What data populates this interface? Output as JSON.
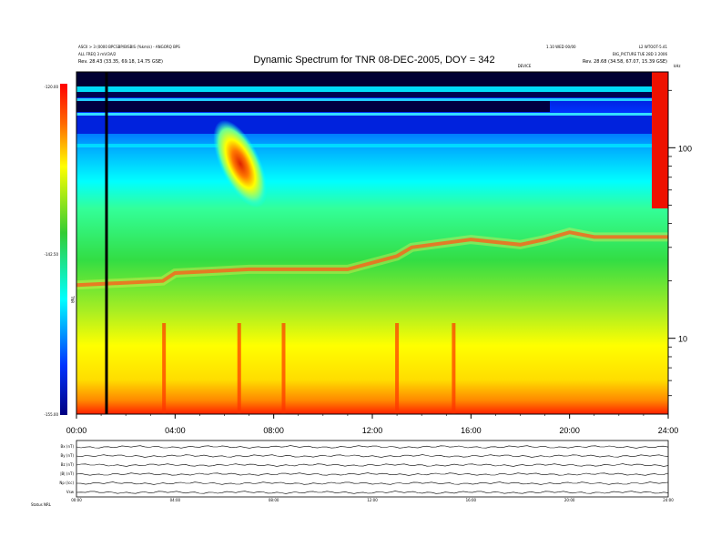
{
  "header": {
    "title": "Dynamic Spectrum for TNR 08-DEC-2005, DOY = 342",
    "left_line1": "ASCII > 3 (0000 BPCSBP/BISBIS (%km/s) - ANGORQ BPS",
    "left_line2": "ALL FREQ 3 mV/3A/2",
    "left_line3": "Rev.   28.43 (33.35, 69.18, 14.75 GSE)",
    "right_line1": "1.10 WED 00/00",
    "right_line2": "L2 WTOOT-5.41",
    "right_line3": "BIG_PICTURE TUE 28D 3 2006",
    "right_line4": "Rev.   28.68 (34.58, 67.07, 15.39 GSE)",
    "sub_right": "DEVICE",
    "khz_label": "kHz"
  },
  "colorbar": {
    "labels": [
      "-120.00",
      "-142.50",
      "-155.00"
    ],
    "side_label": "TNR"
  },
  "bottom_panels": {
    "labels": [
      "Bx (nT)",
      "By (nT)",
      "Bz (nT)",
      "|B| (nT)",
      "Np (/cc)",
      "Vsw"
    ],
    "footer_left": "Status    NRL",
    "mini_ticks": [
      "00:00",
      "04:00",
      "08:00",
      "12:00",
      "16:00",
      "20:00",
      "24:00"
    ]
  },
  "chart_data": {
    "type": "heatmap",
    "title": "Dynamic Spectrum for TNR 08-DEC-2005, DOY = 342",
    "xlabel": "",
    "ylabel": "kHz",
    "x_ticks": [
      "00:00",
      "04:00",
      "08:00",
      "12:00",
      "16:00",
      "20:00",
      "24:00"
    ],
    "xlim": [
      0,
      24
    ],
    "ylim": [
      4,
      250
    ],
    "yscale": "log",
    "y_ticks": [
      10,
      100
    ],
    "colorbar": {
      "min": -155.0,
      "mid": -142.5,
      "max": -120.0
    },
    "plasma_line": {
      "x": [
        0,
        3.5,
        4.0,
        7.0,
        9.0,
        11.0,
        13.0,
        13.6,
        16,
        18,
        19,
        20,
        21,
        24
      ],
      "y": [
        19,
        20,
        22,
        23,
        23,
        23,
        27,
        30,
        33,
        31,
        33,
        36,
        34,
        34
      ]
    },
    "burst_hours": [
      3.55,
      6.6,
      8.4,
      13.0,
      15.3
    ],
    "data_gap_hour": 1.2
  }
}
